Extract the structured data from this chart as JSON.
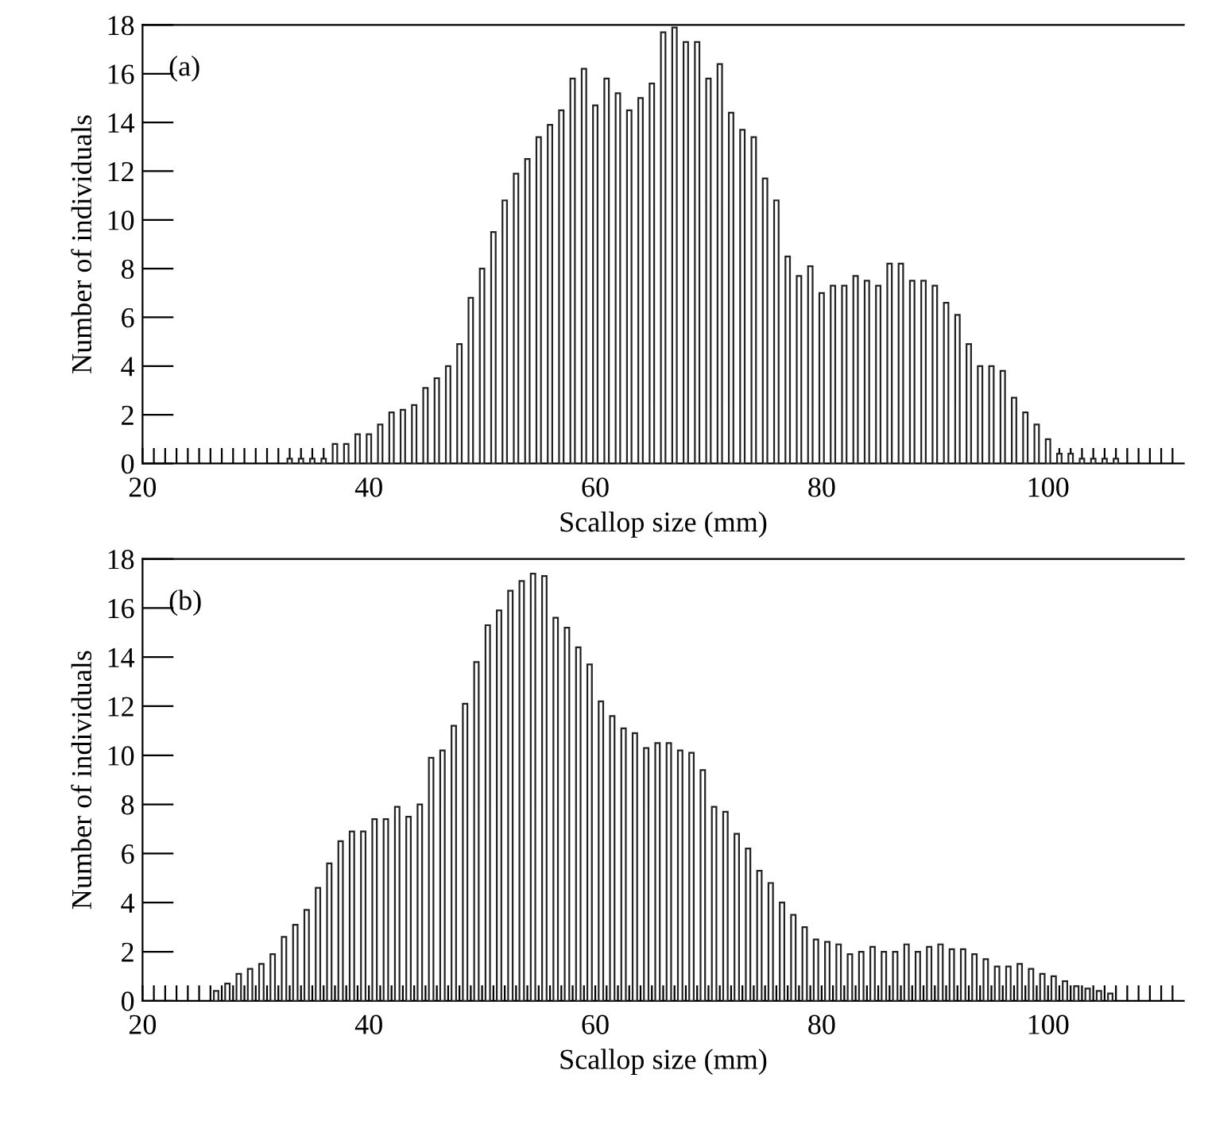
{
  "chart_data": [
    {
      "type": "histogram",
      "xlabel": "Scallop size (mm)",
      "ylabel": "Number of individuals",
      "annotations": [
        "(a)"
      ],
      "color": "#ffffff",
      "bins": [
        32.5,
        33.5,
        34.5,
        35.5,
        36.5,
        37.5,
        38.5,
        39.5,
        40.5,
        41.5,
        42.5,
        43.5,
        44.5,
        45.5,
        46.5,
        47.5,
        48.5,
        49.5,
        50.5,
        51.5,
        52.5,
        53.5,
        54.5,
        55.5,
        56.5,
        57.5,
        58.5,
        59.5,
        60.5,
        61.5,
        62.5,
        63.5,
        64.5,
        65.5,
        66.5,
        67.5,
        68.5,
        69.5,
        70.5,
        71.5,
        72.5,
        73.5,
        74.5,
        75.5,
        76.5,
        77.5,
        78.5,
        79.5,
        80.5,
        81.5,
        82.5,
        83.5,
        84.5,
        85.5,
        86.5,
        87.5,
        88.5,
        89.5,
        90.5,
        91.5,
        92.5,
        93.5,
        94.5,
        95.5,
        96.5,
        97.5,
        98.5,
        99.5,
        100.5,
        101.5,
        102.5,
        103.5,
        104.5,
        105.5,
        106.5
      ],
      "values": [
        0.2,
        0.2,
        0.2,
        0.2,
        0.8,
        0.8,
        1.2,
        1.2,
        1.6,
        2.1,
        2.2,
        2.4,
        3.1,
        3.5,
        4.0,
        4.9,
        6.8,
        8.0,
        9.5,
        10.8,
        11.9,
        12.5,
        13.4,
        13.9,
        14.5,
        15.8,
        16.2,
        14.7,
        15.8,
        15.2,
        14.5,
        15.0,
        15.6,
        17.7,
        17.9,
        17.3,
        17.3,
        15.8,
        16.4,
        14.4,
        13.7,
        13.4,
        11.7,
        10.8,
        8.5,
        7.7,
        8.1,
        7.0,
        7.3,
        7.3,
        7.7,
        7.5,
        7.3,
        8.2,
        8.2,
        7.5,
        7.5,
        7.3,
        6.6,
        6.1,
        4.9,
        4.0,
        4.0,
        3.8,
        2.7,
        2.1,
        1.6,
        1.0,
        0.4,
        0.4,
        0.2,
        0.2,
        0.2,
        0.2
      ],
      "xlim": [
        20,
        112
      ],
      "ylim": [
        0,
        18
      ],
      "yticks": [
        0,
        2,
        4,
        6,
        8,
        10,
        12,
        14,
        16,
        18
      ],
      "xticks": [
        20,
        {
          "value": 21,
          "label": null
        },
        {
          "value": 22,
          "label": null
        },
        {
          "value": 23,
          "label": null
        },
        {
          "value": 24,
          "label": null
        },
        {
          "value": 25,
          "label": null
        },
        {
          "value": 26,
          "label": null
        },
        {
          "value": 27,
          "label": null
        },
        {
          "value": 28,
          "label": null
        },
        {
          "value": 29,
          "label": null
        },
        {
          "value": 30,
          "label": null
        },
        {
          "value": 31,
          "label": null
        },
        {
          "value": 32,
          "label": null
        },
        {
          "value": 33,
          "label": null
        },
        {
          "value": 34,
          "label": null
        },
        {
          "value": 35,
          "label": null
        },
        {
          "value": 36,
          "label": null
        },
        {
          "value": 37,
          "label": null
        },
        {
          "value": 38,
          "label": null
        },
        {
          "value": 39,
          "label": null
        },
        40,
        {
          "value": 41,
          "label": null
        },
        {
          "value": 42,
          "label": null
        },
        {
          "value": 43,
          "label": null
        },
        {
          "value": 44,
          "label": null
        },
        {
          "value": 45,
          "label": null
        },
        {
          "value": 46,
          "label": null
        },
        {
          "value": 47,
          "label": null
        },
        {
          "value": 48,
          "label": null
        },
        {
          "value": 49,
          "label": null
        },
        {
          "value": 50,
          "label": null
        },
        {
          "value": 51,
          "label": null
        },
        {
          "value": 52,
          "label": null
        },
        {
          "value": 53,
          "label": null
        },
        {
          "value": 54,
          "label": null
        },
        {
          "value": 55,
          "label": null
        },
        {
          "value": 56,
          "label": null
        },
        {
          "value": 57,
          "label": null
        },
        {
          "value": 58,
          "label": null
        },
        {
          "value": 59,
          "label": null
        },
        60,
        {
          "value": 61,
          "label": null
        },
        {
          "value": 62,
          "label": null
        },
        {
          "value": 63,
          "label": null
        },
        {
          "value": 64,
          "label": null
        },
        {
          "value": 65,
          "label": null
        },
        {
          "value": 66,
          "label": null
        },
        {
          "value": 67,
          "label": null
        },
        {
          "value": 68,
          "label": null
        },
        {
          "value": 69,
          "label": null
        },
        {
          "value": 70,
          "label": null
        },
        {
          "value": 71,
          "label": null
        },
        {
          "value": 72,
          "label": null
        },
        {
          "value": 73,
          "label": null
        },
        {
          "value": 74,
          "label": null
        },
        {
          "value": 75,
          "label": null
        },
        {
          "value": 76,
          "label": null
        },
        {
          "value": 77,
          "label": null
        },
        {
          "value": 78,
          "label": null
        },
        {
          "value": 79,
          "label": null
        },
        80,
        {
          "value": 81,
          "label": null
        },
        {
          "value": 82,
          "label": null
        },
        {
          "value": 83,
          "label": null
        },
        {
          "value": 84,
          "label": null
        },
        {
          "value": 85,
          "label": null
        },
        {
          "value": 86,
          "label": null
        },
        {
          "value": 87,
          "label": null
        },
        {
          "value": 88,
          "label": null
        },
        {
          "value": 89,
          "label": null
        },
        {
          "value": 90,
          "label": null
        },
        {
          "value": 91,
          "label": null
        },
        {
          "value": 92,
          "label": null
        },
        {
          "value": 93,
          "label": null
        },
        {
          "value": 94,
          "label": null
        },
        {
          "value": 95,
          "label": null
        },
        {
          "value": 96,
          "label": null
        },
        {
          "value": 97,
          "label": null
        },
        {
          "value": 98,
          "label": null
        },
        {
          "value": 99,
          "label": null
        },
        100,
        {
          "value": 101,
          "label": null
        },
        {
          "value": 102,
          "label": null
        },
        {
          "value": 103,
          "label": null
        },
        {
          "value": 104,
          "label": null
        },
        {
          "value": 105,
          "label": null
        },
        {
          "value": 106,
          "label": null
        },
        {
          "value": 107,
          "label": null
        },
        {
          "value": 108,
          "label": null
        },
        {
          "value": 109,
          "label": null
        },
        {
          "value": 110,
          "label": null
        },
        {
          "value": 111,
          "label": null
        }
      ]
    },
    {
      "type": "histogram",
      "xlabel": "Scallop size (mm)",
      "ylabel": "Number of individuals",
      "annotations": [
        "(b)"
      ],
      "color": "#ffffff",
      "bins": [
        26,
        27,
        28,
        29,
        30,
        31,
        32,
        33,
        34,
        35,
        36,
        37,
        38,
        39,
        40,
        41,
        42,
        43,
        44,
        45,
        46,
        47,
        48,
        49,
        50,
        51,
        52,
        53,
        54,
        55,
        56,
        57,
        58,
        59,
        60,
        61,
        62,
        63,
        64,
        65,
        66,
        67,
        68,
        69,
        70,
        71,
        72,
        73,
        74,
        75,
        76,
        77,
        78,
        79,
        80,
        81,
        82,
        83,
        84,
        85,
        86,
        87,
        88,
        89,
        90,
        91,
        92,
        93,
        94,
        95,
        96,
        97,
        98,
        99,
        100,
        101,
        102,
        103,
        104,
        105,
        106
      ],
      "values": [
        0.4,
        0.7,
        1.1,
        1.3,
        1.5,
        1.9,
        2.6,
        3.1,
        3.7,
        4.6,
        5.6,
        6.5,
        6.9,
        6.9,
        7.4,
        7.4,
        7.9,
        7.5,
        8.0,
        9.9,
        10.2,
        11.2,
        12.1,
        13.8,
        15.3,
        15.9,
        16.7,
        17.1,
        17.4,
        17.3,
        15.6,
        15.2,
        14.4,
        13.7,
        12.2,
        11.6,
        11.1,
        10.9,
        10.3,
        10.5,
        10.5,
        10.2,
        10.1,
        9.4,
        7.9,
        7.7,
        6.8,
        6.2,
        5.3,
        4.8,
        4.0,
        3.5,
        3.0,
        2.5,
        2.4,
        2.3,
        1.9,
        2.0,
        2.2,
        2.0,
        2.0,
        2.3,
        2.0,
        2.2,
        2.3,
        2.1,
        2.1,
        1.9,
        1.7,
        1.4,
        1.4,
        1.5,
        1.3,
        1.1,
        1.0,
        0.8,
        0.6,
        0.5,
        0.4,
        0.3
      ],
      "xlim": [
        20,
        112
      ],
      "ylim": [
        0,
        18
      ],
      "yticks": [
        0,
        2,
        4,
        6,
        8,
        10,
        12,
        14,
        16,
        18
      ],
      "xticks": [
        20,
        {
          "value": 21,
          "label": null
        },
        {
          "value": 22,
          "label": null
        },
        {
          "value": 23,
          "label": null
        },
        {
          "value": 24,
          "label": null
        },
        {
          "value": 25,
          "label": null
        },
        {
          "value": 26,
          "label": null
        },
        {
          "value": 27,
          "label": null
        },
        {
          "value": 28,
          "label": null
        },
        {
          "value": 29,
          "label": null
        },
        {
          "value": 30,
          "label": null
        },
        {
          "value": 31,
          "label": null
        },
        {
          "value": 32,
          "label": null
        },
        {
          "value": 33,
          "label": null
        },
        {
          "value": 34,
          "label": null
        },
        {
          "value": 35,
          "label": null
        },
        {
          "value": 36,
          "label": null
        },
        {
          "value": 37,
          "label": null
        },
        {
          "value": 38,
          "label": null
        },
        {
          "value": 39,
          "label": null
        },
        40,
        {
          "value": 41,
          "label": null
        },
        {
          "value": 42,
          "label": null
        },
        {
          "value": 43,
          "label": null
        },
        {
          "value": 44,
          "label": null
        },
        {
          "value": 45,
          "label": null
        },
        {
          "value": 46,
          "label": null
        },
        {
          "value": 47,
          "label": null
        },
        {
          "value": 48,
          "label": null
        },
        {
          "value": 49,
          "label": null
        },
        {
          "value": 50,
          "label": null
        },
        {
          "value": 51,
          "label": null
        },
        {
          "value": 52,
          "label": null
        },
        {
          "value": 53,
          "label": null
        },
        {
          "value": 54,
          "label": null
        },
        {
          "value": 55,
          "label": null
        },
        {
          "value": 56,
          "label": null
        },
        {
          "value": 57,
          "label": null
        },
        {
          "value": 58,
          "label": null
        },
        {
          "value": 59,
          "label": null
        },
        60,
        {
          "value": 61,
          "label": null
        },
        {
          "value": 62,
          "label": null
        },
        {
          "value": 63,
          "label": null
        },
        {
          "value": 64,
          "label": null
        },
        {
          "value": 65,
          "label": null
        },
        {
          "value": 66,
          "label": null
        },
        {
          "value": 67,
          "label": null
        },
        {
          "value": 68,
          "label": null
        },
        {
          "value": 69,
          "label": null
        },
        {
          "value": 70,
          "label": null
        },
        {
          "value": 71,
          "label": null
        },
        {
          "value": 72,
          "label": null
        },
        {
          "value": 73,
          "label": null
        },
        {
          "value": 74,
          "label": null
        },
        {
          "value": 75,
          "label": null
        },
        {
          "value": 76,
          "label": null
        },
        {
          "value": 77,
          "label": null
        },
        {
          "value": 78,
          "label": null
        },
        {
          "value": 79,
          "label": null
        },
        80,
        {
          "value": 81,
          "label": null
        },
        {
          "value": 82,
          "label": null
        },
        {
          "value": 83,
          "label": null
        },
        {
          "value": 84,
          "label": null
        },
        {
          "value": 85,
          "label": null
        },
        {
          "value": 86,
          "label": null
        },
        {
          "value": 87,
          "label": null
        },
        {
          "value": 88,
          "label": null
        },
        {
          "value": 89,
          "label": null
        },
        {
          "value": 90,
          "label": null
        },
        {
          "value": 91,
          "label": null
        },
        {
          "value": 92,
          "label": null
        },
        {
          "value": 93,
          "label": null
        },
        {
          "value": 94,
          "label": null
        },
        {
          "value": 95,
          "label": null
        },
        {
          "value": 96,
          "label": null
        },
        {
          "value": 97,
          "label": null
        },
        {
          "value": 98,
          "label": null
        },
        {
          "value": 99,
          "label": null
        },
        100,
        {
          "value": 101,
          "label": null
        },
        {
          "value": 102,
          "label": null
        },
        {
          "value": 103,
          "label": null
        },
        {
          "value": 104,
          "label": null
        },
        {
          "value": 105,
          "label": null
        },
        {
          "value": 106,
          "label": null
        },
        {
          "value": 107,
          "label": null
        },
        {
          "value": 108,
          "label": null
        },
        {
          "value": 109,
          "label": null
        },
        {
          "value": 110,
          "label": null
        },
        {
          "value": 111,
          "label": null
        }
      ]
    }
  ]
}
